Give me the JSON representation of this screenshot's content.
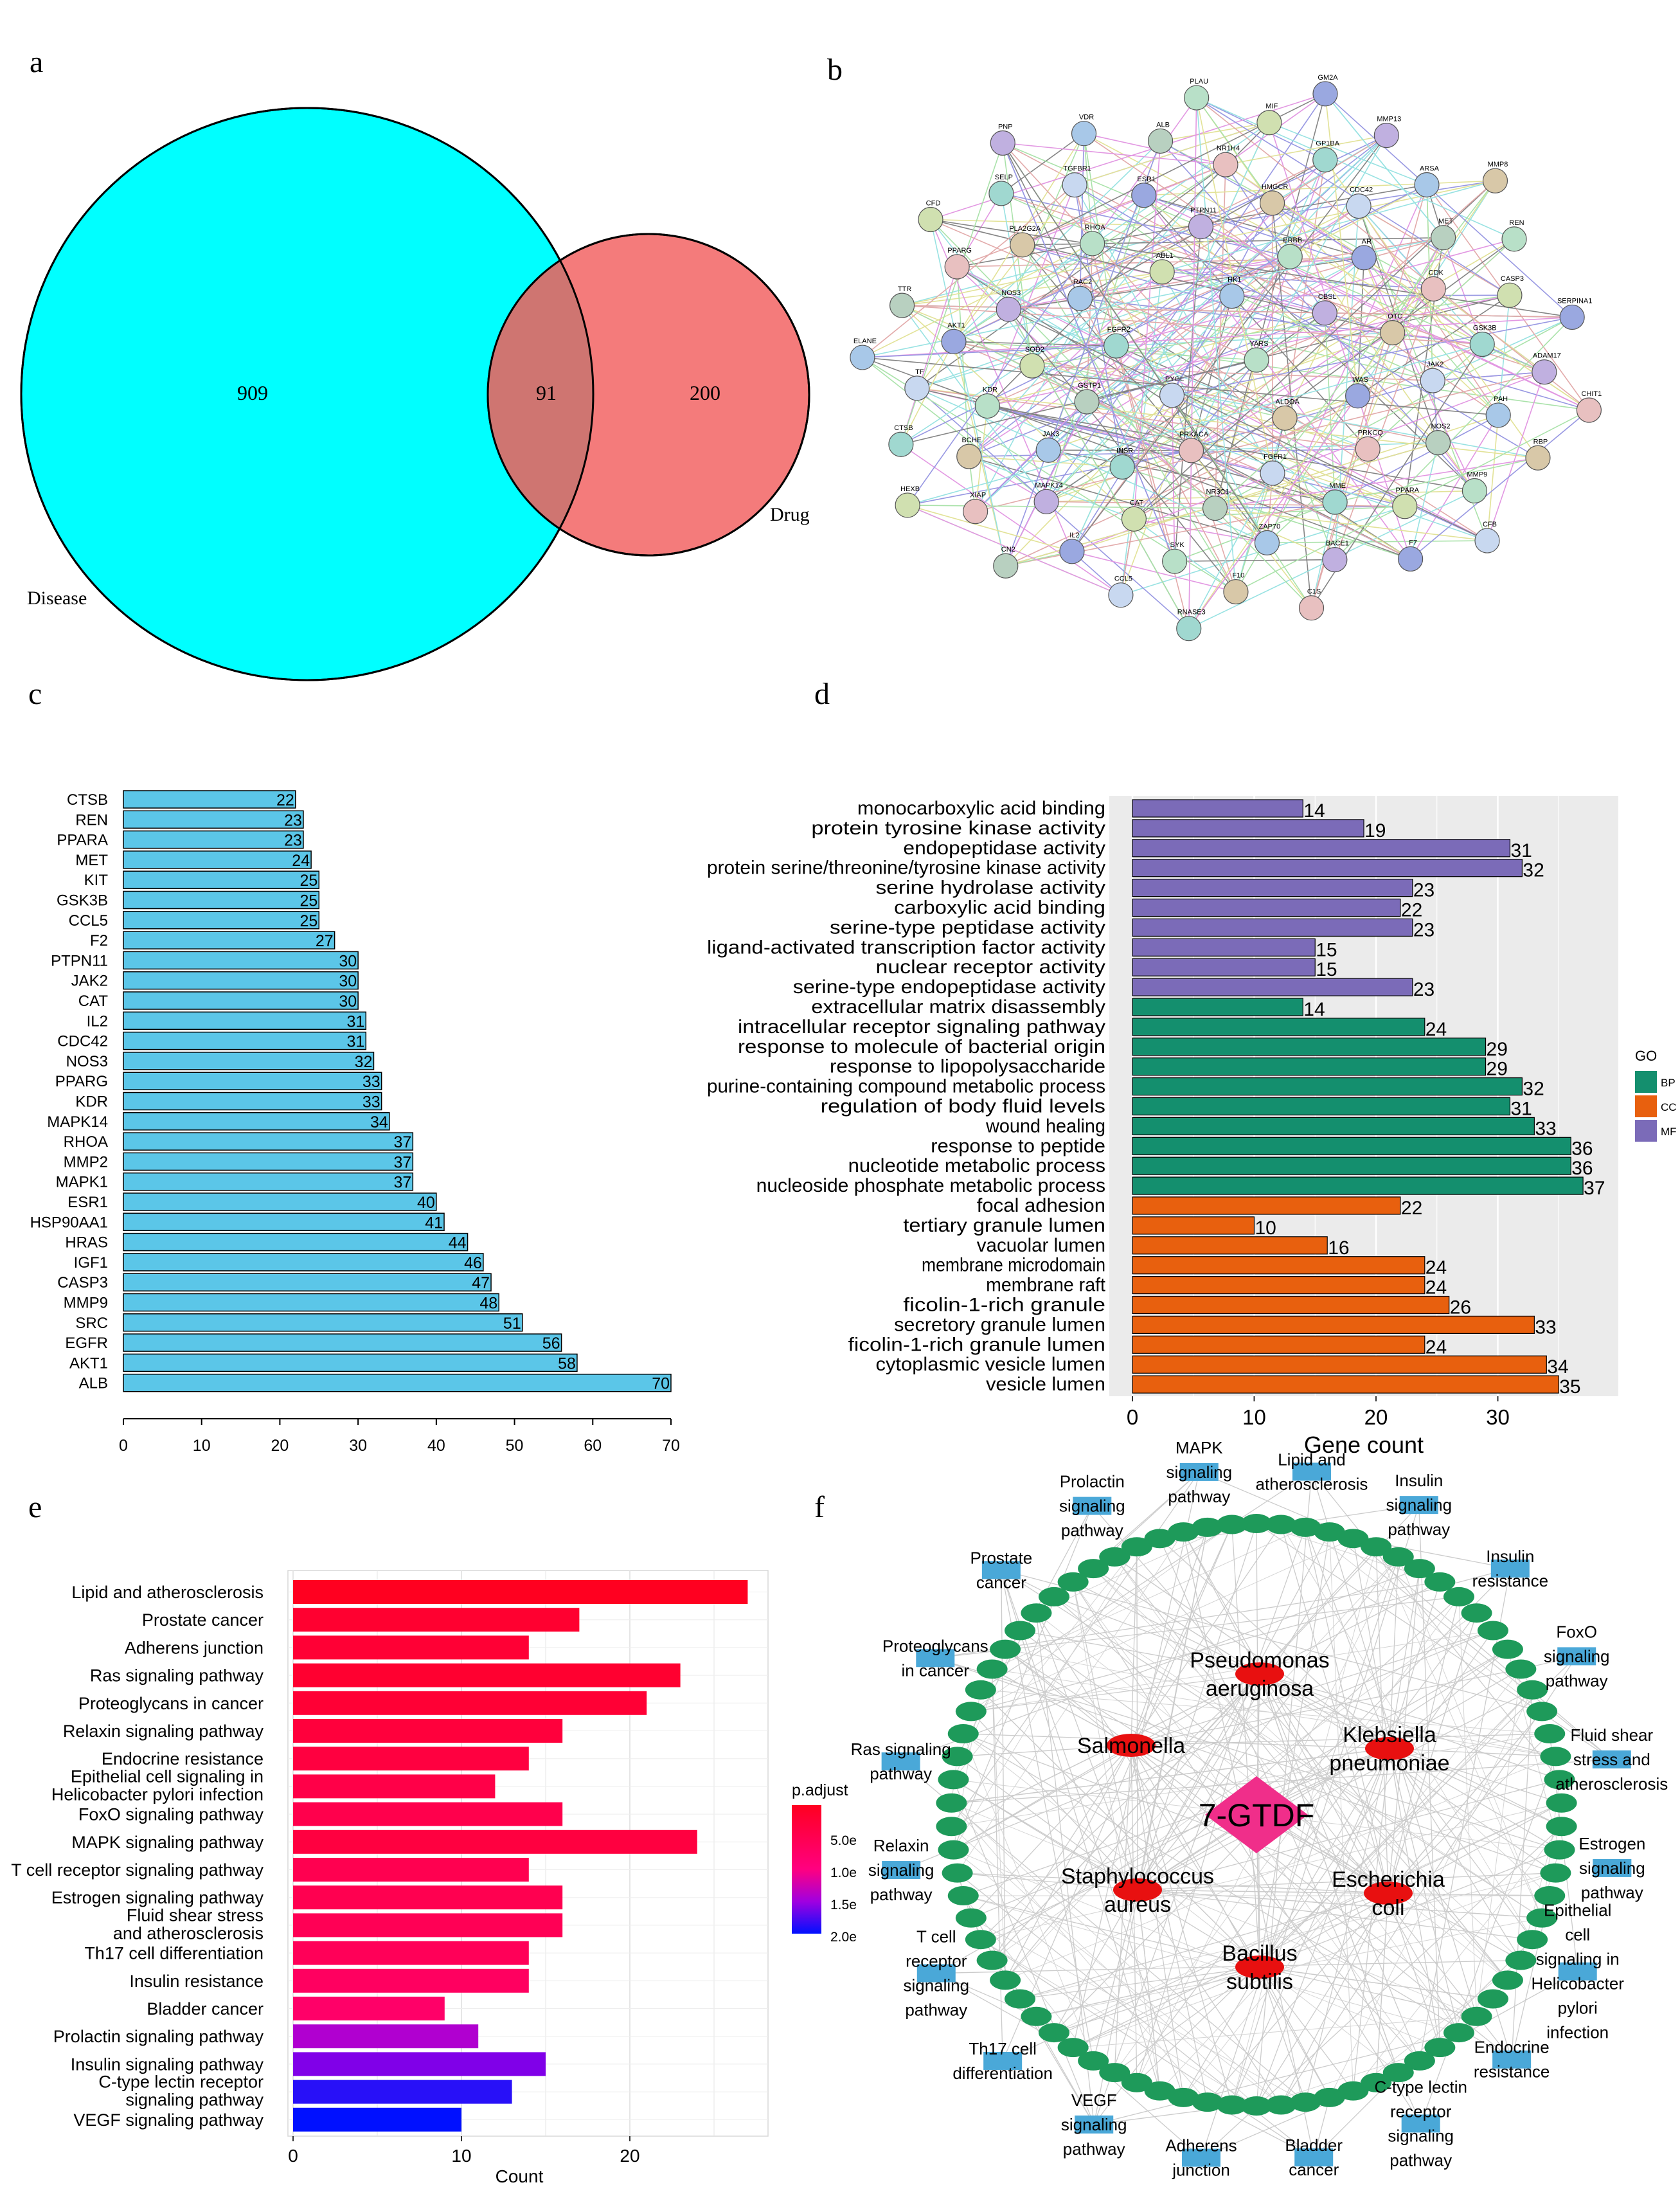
{
  "panel_labels": {
    "a": "a",
    "b": "b",
    "c": "c",
    "d": "d",
    "e": "e",
    "f": "f"
  },
  "panel_a": {
    "disease_label": "Disease",
    "drug_label": "Drug",
    "disease_only": "909",
    "overlap": "91",
    "drug_only": "200",
    "colors": {
      "disease": "#00FFFF",
      "drug": "#F47B7B",
      "overlap": "#CF7571"
    }
  },
  "panel_b": {
    "nodes": [
      "YARS",
      "PYGL",
      "HK1",
      "ALDOA",
      "FGFR2",
      "CBSL",
      "PRKACA",
      "ABL1",
      "WAS",
      "GSTP1",
      "ERBB",
      "FGFR1",
      "RAC2",
      "OTC",
      "INSR",
      "PTPN11",
      "PRKCQ",
      "SOD2",
      "AR",
      "NR3C1",
      "RHOA",
      "JAK2",
      "JAK3",
      "HMGCR",
      "MME",
      "NOS3",
      "CDK",
      "CAT",
      "ESR1",
      "NOS2",
      "KDR",
      "CDC42",
      "ZAP70",
      "PLA2G2A",
      "GSK3B",
      "MAPK14",
      "NR1H4",
      "PPARA",
      "AKT1",
      "MET",
      "SYK",
      "TGFBR1",
      "PAH",
      "BCHE",
      "GP1BA",
      "BACE1",
      "PPARG",
      "CASP3",
      "IL2",
      "ALB",
      "MMP9",
      "TF",
      "ARSA",
      "F10",
      "SELP",
      "ADAM17",
      "XIAP",
      "MIF",
      "F7",
      "TTR",
      "REN",
      "CCL5",
      "VDR",
      "RBP",
      "CTSB",
      "MMP13",
      "C1S",
      "CFD",
      "SERPINA1",
      "CN2",
      "PLAU",
      "CFB",
      "ELANE",
      "MMP8",
      "RNASE3",
      "PNP",
      "CHIT1",
      "HEXB",
      "GM2A"
    ]
  },
  "panel_f": {
    "center": "7-GTDF",
    "bacteria": [
      "Pseudomonas aeruginosa",
      "Salmonella",
      "Klebsiella pneumoniae",
      "Staphylococcus aureus",
      "Escherichia coli",
      "Bacillus subtilis"
    ],
    "pathways": [
      "MAPK signaling pathway",
      "Lipid and atherosclerosis",
      "Insulin signaling pathway",
      "Insulin resistance",
      "FoxO signaling pathway",
      "Fluid shear stress and atherosclerosis",
      "Estrogen signaling pathway",
      "Epithelial cell signaling in Helicobacter pylori infection",
      "Endocrine resistance",
      "C-type lectin receptor signaling pathway",
      "Bladder cancer",
      "Adherens junction",
      "VEGF signaling pathway",
      "Th17 cell differentiation",
      "T cell receptor signaling pathway",
      "Relaxin signaling pathway",
      "Ras signaling pathway",
      "Proteoglycans in cancer",
      "Prostate cancer",
      "Prolactin signaling pathway"
    ]
  },
  "chart_data": [
    {
      "id": "c",
      "type": "bar",
      "orientation": "horizontal",
      "categories": [
        "CTSB",
        "REN",
        "PPARA",
        "MET",
        "KIT",
        "GSK3B",
        "CCL5",
        "F2",
        "PTPN11",
        "JAK2",
        "CAT",
        "IL2",
        "CDC42",
        "NOS3",
        "PPARG",
        "KDR",
        "MAPK14",
        "RHOA",
        "MMP2",
        "MAPK1",
        "ESR1",
        "HSP90AA1",
        "HRAS",
        "IGF1",
        "CASP3",
        "MMP9",
        "SRC",
        "EGFR",
        "AKT1",
        "ALB"
      ],
      "values": [
        22,
        23,
        23,
        24,
        25,
        25,
        25,
        27,
        30,
        30,
        30,
        31,
        31,
        32,
        33,
        33,
        34,
        37,
        37,
        37,
        40,
        41,
        44,
        46,
        47,
        48,
        51,
        56,
        58,
        70
      ],
      "xlim": [
        0,
        70
      ],
      "xticks": [
        "0",
        "10",
        "20",
        "30",
        "40",
        "50",
        "60",
        "70"
      ],
      "bar_color": "#5BC6E8"
    },
    {
      "id": "d",
      "type": "bar",
      "orientation": "horizontal",
      "categories": [
        "monocarboxylic acid binding",
        "protein tyrosine kinase activity",
        "endopeptidase activity",
        "protein serine/threonine/tyrosine kinase activity",
        "serine hydrolase activity",
        "carboxylic acid binding",
        "serine-type peptidase activity",
        "ligand-activated transcription factor activity",
        "nuclear receptor activity",
        "serine-type endopeptidase activity",
        "extracellular matrix disassembly",
        "intracellular receptor signaling pathway",
        "response to molecule of bacterial origin",
        "response to lipopolysaccharide",
        "purine-containing compound metabolic process",
        "regulation of body fluid levels",
        "wound healing",
        "response to peptide",
        "nucleotide metabolic process",
        "nucleoside phosphate metabolic process",
        "focal adhesion",
        "tertiary granule lumen",
        "vacuolar lumen",
        "membrane microdomain",
        "membrane raft",
        "ficolin-1-rich granule",
        "secretory granule lumen",
        "ficolin-1-rich granule lumen",
        "cytoplasmic vesicle lumen",
        "vesicle lumen"
      ],
      "values": [
        14,
        19,
        31,
        32,
        23,
        22,
        23,
        15,
        15,
        23,
        14,
        24,
        29,
        29,
        32,
        31,
        33,
        36,
        36,
        37,
        22,
        10,
        16,
        24,
        24,
        26,
        33,
        24,
        34,
        35
      ],
      "groups": [
        "MF",
        "MF",
        "MF",
        "MF",
        "MF",
        "MF",
        "MF",
        "MF",
        "MF",
        "MF",
        "BP",
        "BP",
        "BP",
        "BP",
        "BP",
        "BP",
        "BP",
        "BP",
        "BP",
        "BP",
        "CC",
        "CC",
        "CC",
        "CC",
        "CC",
        "CC",
        "CC",
        "CC",
        "CC",
        "CC"
      ],
      "xlim": [
        0,
        39
      ],
      "xticks": [
        "0",
        "10",
        "20",
        "30"
      ],
      "xlabel": "Gene count",
      "legend": {
        "title": "GO",
        "entries": [
          "BP",
          "CC",
          "MF"
        ],
        "colors": [
          "#148F6E",
          "#E8600E",
          "#7B6BB8"
        ],
        "position": "right"
      }
    },
    {
      "id": "e",
      "type": "bar",
      "orientation": "horizontal",
      "categories": [
        "Lipid and atherosclerosis",
        "Prostate cancer",
        "Adherens junction",
        "Ras signaling pathway",
        "Proteoglycans in cancer",
        "Relaxin signaling pathway",
        "Endocrine resistance",
        "Epithelial cell signaling in Helicobacter pylori infection",
        "FoxO signaling pathway",
        "MAPK signaling pathway",
        "T cell receptor signaling pathway",
        "Estrogen signaling pathway",
        "Fluid shear stress and atherosclerosis",
        "Th17 cell differentiation",
        "Insulin resistance",
        "Bladder cancer",
        "Prolactin signaling pathway",
        "Insulin signaling pathway",
        "C-type lectin receptor signaling pathway",
        "VEGF signaling pathway"
      ],
      "values": [
        27,
        17,
        14,
        23,
        21,
        16,
        14,
        12,
        16,
        24,
        14,
        16,
        16,
        14,
        14,
        9,
        11,
        15,
        13,
        10
      ],
      "colors": [
        "#FF0020",
        "#FF0030",
        "#FF0035",
        "#FF0030",
        "#FF0035",
        "#FF003C",
        "#FF0040",
        "#FF0048",
        "#FF004C",
        "#FF0040",
        "#FF0050",
        "#FF0050",
        "#FF0055",
        "#FF0058",
        "#FF0060",
        "#FF0068",
        "#B000D0",
        "#8000E8",
        "#2810F8",
        "#0010FF"
      ],
      "xlim": [
        0,
        28
      ],
      "xticks": [
        "0",
        "10",
        "20"
      ],
      "xlabel": "Count",
      "grid": true,
      "legend": {
        "title": "p.adjust",
        "ticks": [
          "5.0e",
          "1.0e",
          "1.5e",
          "2.0e"
        ],
        "position": "right"
      }
    }
  ]
}
